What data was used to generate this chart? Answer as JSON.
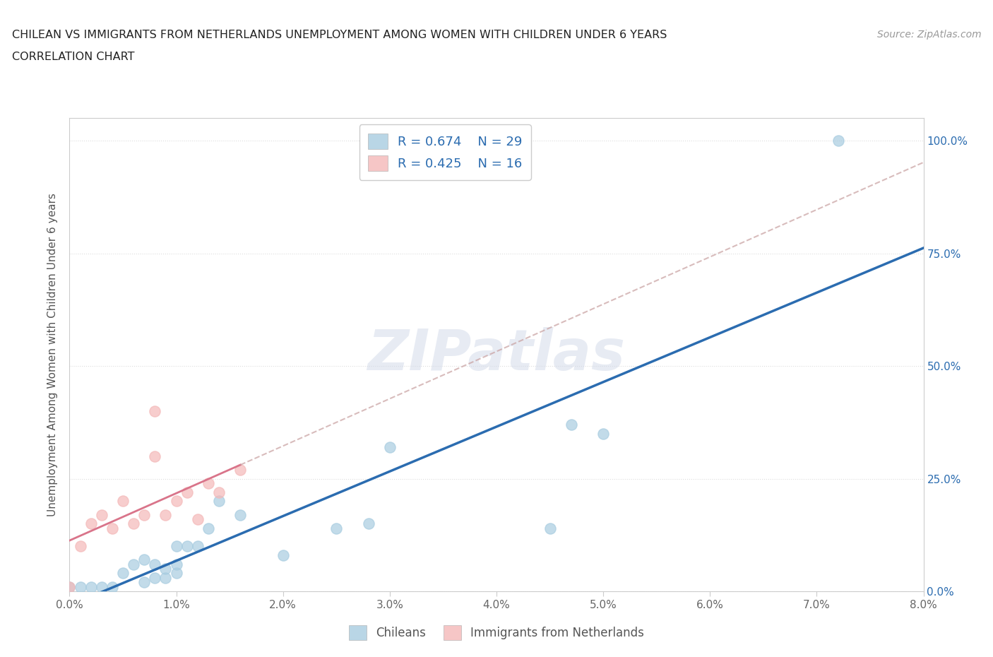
{
  "title_line1": "CHILEAN VS IMMIGRANTS FROM NETHERLANDS UNEMPLOYMENT AMONG WOMEN WITH CHILDREN UNDER 6 YEARS",
  "title_line2": "CORRELATION CHART",
  "source_text": "Source: ZipAtlas.com",
  "ylabel": "Unemployment Among Women with Children Under 6 years",
  "xlim": [
    0.0,
    0.08
  ],
  "ylim": [
    0.0,
    1.05
  ],
  "xtick_labels": [
    "0.0%",
    "1.0%",
    "2.0%",
    "3.0%",
    "4.0%",
    "5.0%",
    "6.0%",
    "7.0%",
    "8.0%"
  ],
  "ytick_vals": [
    0.0,
    0.25,
    0.5,
    0.75,
    1.0
  ],
  "ytick_labels_left": [
    "",
    "",
    "",
    "",
    ""
  ],
  "ytick_labels_right": [
    "100.0%",
    "75.0%",
    "50.0%",
    "25.0%",
    "0.0%"
  ],
  "ytick_positions_right": [
    1.0,
    0.75,
    0.5,
    0.25,
    0.0
  ],
  "chilean_R": 0.674,
  "chilean_N": 29,
  "netherlands_R": 0.425,
  "netherlands_N": 16,
  "chilean_color": "#a8cce0",
  "netherlands_color": "#f4b8b8",
  "chilean_line_color": "#2b6cb0",
  "netherlands_line_solid_color": "#d9748a",
  "netherlands_line_dash_color": "#c8a0a0",
  "background_color": "#ffffff",
  "watermark_text": "ZIPatlas",
  "chilean_x": [
    0.0,
    0.001,
    0.002,
    0.003,
    0.004,
    0.005,
    0.006,
    0.007,
    0.007,
    0.008,
    0.008,
    0.009,
    0.009,
    0.01,
    0.01,
    0.01,
    0.011,
    0.012,
    0.013,
    0.014,
    0.016,
    0.02,
    0.025,
    0.028,
    0.03,
    0.045,
    0.047,
    0.05,
    0.072
  ],
  "chilean_y": [
    0.01,
    0.01,
    0.01,
    0.01,
    0.01,
    0.04,
    0.06,
    0.02,
    0.07,
    0.03,
    0.06,
    0.03,
    0.05,
    0.04,
    0.06,
    0.1,
    0.1,
    0.1,
    0.14,
    0.2,
    0.17,
    0.08,
    0.14,
    0.15,
    0.32,
    0.14,
    0.37,
    0.35,
    1.0
  ],
  "netherlands_x": [
    0.0,
    0.001,
    0.002,
    0.003,
    0.004,
    0.005,
    0.006,
    0.007,
    0.008,
    0.009,
    0.01,
    0.011,
    0.012,
    0.013,
    0.014,
    0.016
  ],
  "netherlands_y": [
    0.01,
    0.1,
    0.15,
    0.17,
    0.14,
    0.2,
    0.15,
    0.17,
    0.3,
    0.17,
    0.2,
    0.22,
    0.16,
    0.24,
    0.22,
    0.27
  ],
  "neth_outlier_x": [
    0.008
  ],
  "neth_outlier_y": [
    0.4
  ],
  "grid_color": "#dddddd",
  "tick_color": "#aaaaaa"
}
